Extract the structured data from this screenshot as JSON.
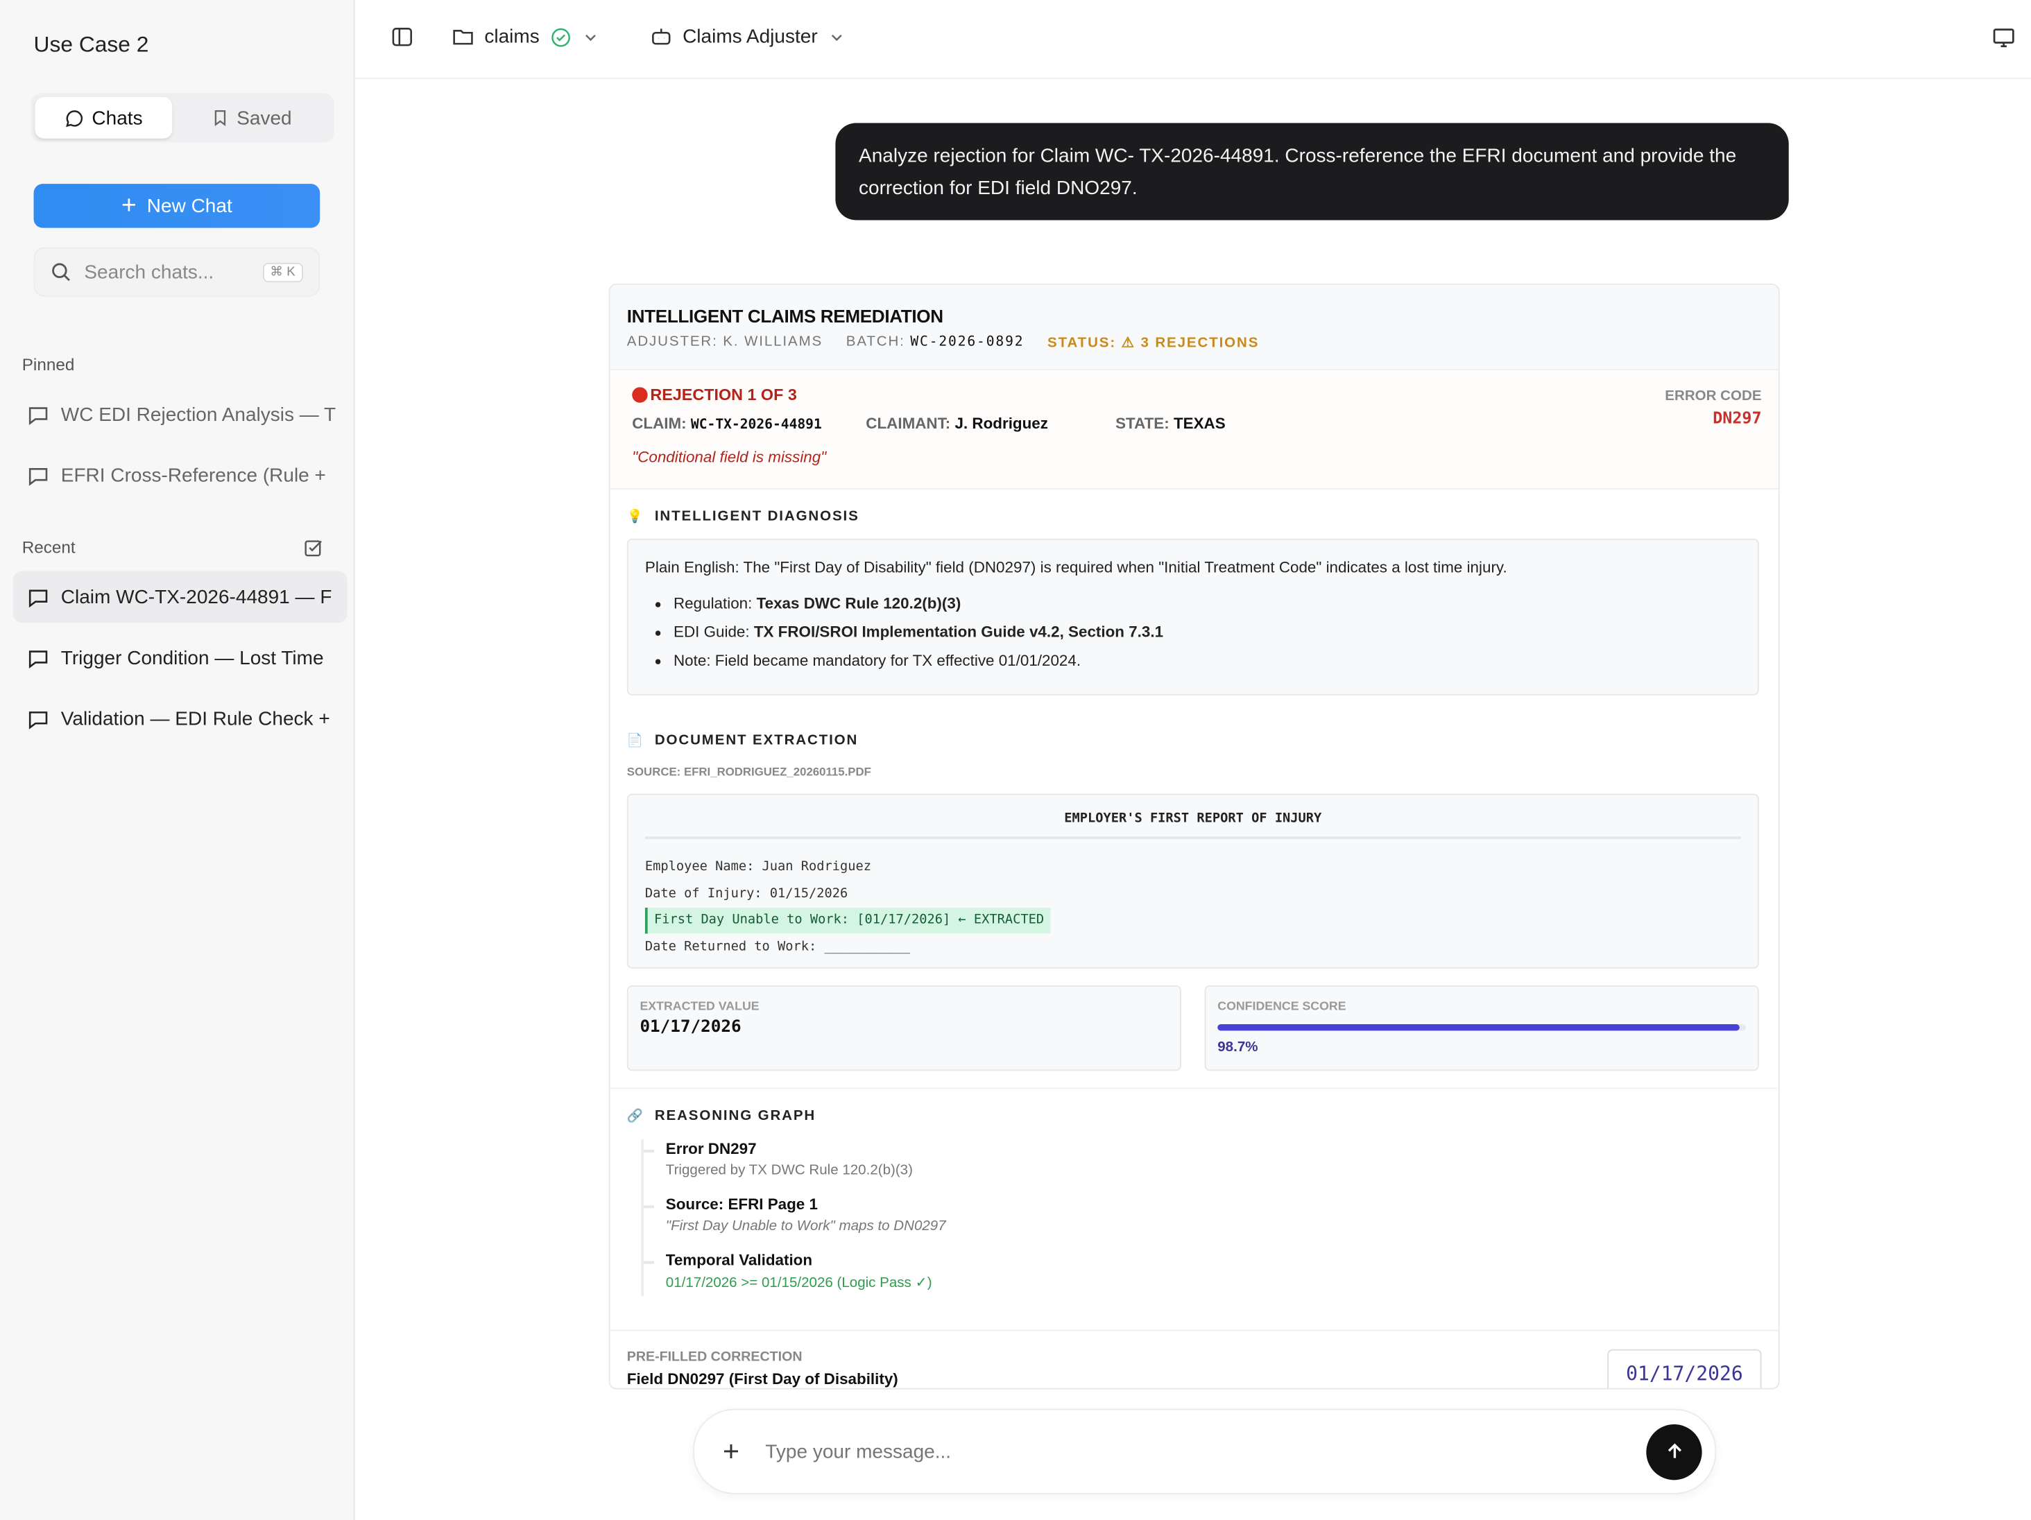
{
  "sidebar": {
    "app_title": "Use Case 2",
    "tabs": [
      {
        "label": "Chats",
        "icon": "chat-bubble-icon"
      },
      {
        "label": "Saved",
        "icon": "bookmark-icon"
      }
    ],
    "new_chat_label": "New Chat",
    "search": {
      "placeholder": "Search chats...",
      "shortcut": "⌘ K"
    },
    "pinned_label": "Pinned",
    "pinned": [
      {
        "label": "WC EDI Rejection Analysis — T"
      },
      {
        "label": "EFRI Cross-Reference (Rule +"
      }
    ],
    "recent_label": "Recent",
    "recent": [
      {
        "label": "Claim WC-TX-2026-44891 — F",
        "selected": true
      },
      {
        "label": "Trigger Condition — Lost Time"
      },
      {
        "label": "Validation — EDI Rule Check +"
      }
    ]
  },
  "topbar": {
    "project": "claims",
    "project_status": "connected",
    "agent": "Claims Adjuster"
  },
  "conversation": {
    "user_message": "Analyze rejection for Claim WC- TX-2026-44891. Cross-reference the EFRI document and provide the correction for EDI field DNO297."
  },
  "card": {
    "title": "INTELLIGENT CLAIMS REMEDIATION",
    "adjuster_label": "ADJUSTER:",
    "adjuster": "K. WILLIAMS",
    "batch_label": "BATCH:",
    "batch": "WC-2026-0892",
    "status": "STATUS: ⚠ 3 REJECTIONS",
    "rejection": {
      "title": "REJECTION 1 OF 3",
      "claim_label": "CLAIM:",
      "claim": "WC-TX-2026-44891",
      "claimant_label": "CLAIMANT:",
      "claimant": "J. Rodriguez",
      "state_label": "STATE:",
      "state": "TEXAS",
      "message": "\"Conditional field is missing\"",
      "error_code_label": "ERROR CODE",
      "error_code": "DN297"
    },
    "diagnosis": {
      "title": "INTELLIGENT DIAGNOSIS",
      "plain": "Plain English: The \"First Day of Disability\" field (DN0297) is required when \"Initial Treatment Code\" indicates a lost time injury.",
      "items": [
        {
          "label": "Regulation: ",
          "value": "Texas DWC Rule 120.2(b)(3)"
        },
        {
          "label": "EDI Guide: ",
          "value": "TX FROI/SROI Implementation Guide v4.2, Section 7.3.1"
        },
        {
          "label": "Note: Field became mandatory for TX effective 01/01/2024.",
          "value": ""
        }
      ]
    },
    "extraction": {
      "title": "DOCUMENT EXTRACTION",
      "source": "SOURCE: EFRI_RODRIGUEZ_20260115.PDF",
      "doc_title": "EMPLOYER'S FIRST REPORT OF INJURY",
      "lines": [
        "Employee Name: Juan Rodriguez",
        "Date of Injury: 01/15/2026",
        "First Day Unable to Work: [01/17/2026] ← EXTRACTED",
        "Date Returned to Work: ___________"
      ],
      "extracted_label": "EXTRACTED VALUE",
      "extracted_value": "01/17/2026",
      "confidence_label": "CONFIDENCE SCORE",
      "confidence": "98.7%",
      "confidence_value": 98.7
    },
    "reasoning": {
      "title": "REASONING GRAPH",
      "nodes": [
        {
          "title": "Error DN297",
          "sub": "Triggered by TX DWC Rule 120.2(b)(3)"
        },
        {
          "title": "Source: EFRI Page 1",
          "sub": "\"First Day Unable to Work\" maps to DN0297"
        },
        {
          "title": "Temporal Validation",
          "sub": "01/17/2026 >= 01/15/2026 (Logic Pass ✓)"
        }
      ]
    },
    "correction": {
      "label": "PRE-FILLED CORRECTION",
      "field": "Field DN0297 (First Day of Disability)",
      "value": "01/17/2026"
    }
  },
  "composer": {
    "placeholder": "Type your message..."
  },
  "colors": {
    "accent": "#2f8cf0",
    "error": "#b42318",
    "warning": "#c98a1a",
    "progress": "#4a41d9",
    "success": "#2e9d5e"
  }
}
